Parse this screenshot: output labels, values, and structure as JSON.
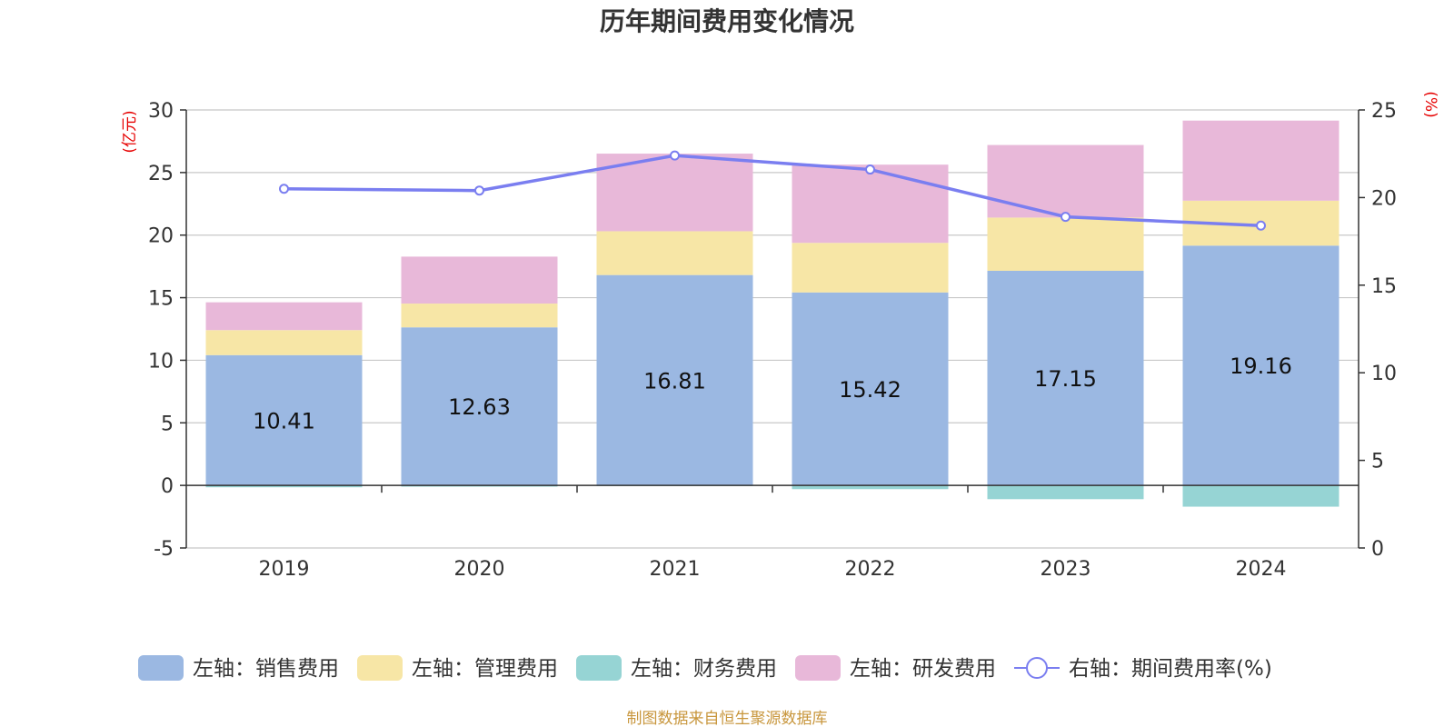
{
  "chart_data": {
    "type": "bar",
    "title": "历年期间费用变化情况",
    "categories": [
      "2019",
      "2020",
      "2021",
      "2022",
      "2023",
      "2024"
    ],
    "left_axis": {
      "unit": "(亿元)",
      "ylim": [
        -5,
        30
      ],
      "ticks": [
        -5,
        0,
        5,
        10,
        15,
        20,
        25,
        30
      ]
    },
    "right_axis": {
      "unit": "(%)",
      "ylim": [
        0,
        25
      ],
      "ticks": [
        0,
        5,
        10,
        15,
        20,
        25
      ]
    },
    "series": [
      {
        "name": "左轴：销售费用",
        "type": "bar",
        "axis": "left",
        "color": "#9bb8e2",
        "values": [
          10.41,
          12.63,
          16.81,
          15.42,
          17.15,
          19.16
        ],
        "show_labels": true
      },
      {
        "name": "左轴：管理费用",
        "type": "bar",
        "axis": "left",
        "color": "#f7e6a6",
        "values": [
          2.0,
          1.9,
          3.5,
          3.96,
          4.25,
          3.59
        ]
      },
      {
        "name": "左轴：财务费用",
        "type": "bar",
        "axis": "left",
        "color": "#96d4d4",
        "values": [
          -0.15,
          -0.1,
          -0.05,
          -0.3,
          -1.1,
          -1.7
        ]
      },
      {
        "name": "左轴：研发费用",
        "type": "bar",
        "axis": "left",
        "color": "#e8b8d9",
        "values": [
          2.22,
          3.75,
          6.2,
          6.25,
          5.8,
          6.4
        ]
      },
      {
        "name": "右轴：期间费用率(%)",
        "type": "line",
        "axis": "right",
        "color": "#7a7ef0",
        "values": [
          20.5,
          20.4,
          22.4,
          21.6,
          18.9,
          18.4
        ]
      }
    ],
    "grid": true,
    "legend_position": "bottom"
  },
  "source_note": "制图数据来自恒生聚源数据库"
}
